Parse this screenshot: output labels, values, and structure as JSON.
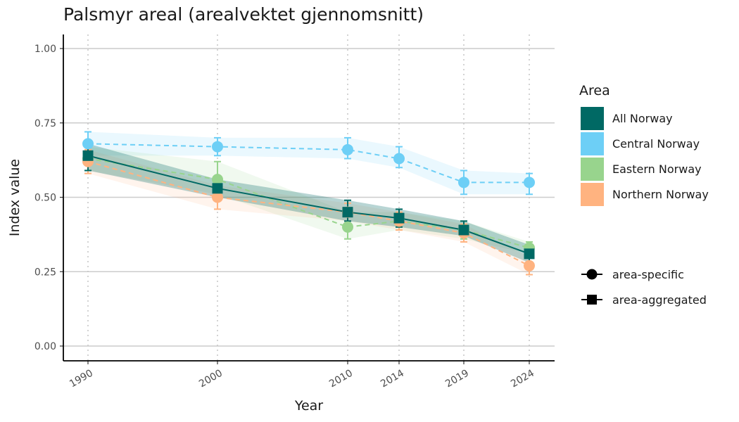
{
  "chart_data": {
    "type": "line",
    "title": "Palsmyr areal (arealvektet gjennomsnitt)",
    "xlabel": "Year",
    "ylabel": "Index value",
    "x": [
      1990,
      2000,
      2010,
      2014,
      2019,
      2024
    ],
    "x_tick_labels": [
      "1990",
      "2000",
      "2010",
      "2014",
      "2019",
      "2024"
    ],
    "ylim": [
      0,
      1
    ],
    "y_ticks": [
      0.0,
      0.25,
      0.5,
      0.75,
      1.0
    ],
    "y_tick_labels": [
      "0.00",
      "0.25",
      "0.50",
      "0.75",
      "1.00"
    ],
    "grid": "horizontal major lines; dotted vertical lines at data years",
    "legend": {
      "title": "Area",
      "position": "right",
      "shape_entries": [
        {
          "label": "area-specific",
          "shape": "circle"
        },
        {
          "label": "area-aggregated",
          "shape": "square"
        }
      ]
    },
    "series": [
      {
        "name": "Central Norway",
        "color": "#6DCFF6",
        "line": "dashed",
        "shape": "circle",
        "values": [
          0.68,
          0.67,
          0.66,
          0.63,
          0.55,
          0.55
        ],
        "lower": [
          0.64,
          0.64,
          0.63,
          0.6,
          0.51,
          0.51
        ],
        "upper": [
          0.72,
          0.7,
          0.7,
          0.67,
          0.59,
          0.58
        ]
      },
      {
        "name": "Eastern Norway",
        "color": "#98D48D",
        "line": "dashed",
        "shape": "circle",
        "values": [
          0.63,
          0.56,
          0.4,
          0.42,
          0.39,
          0.33
        ],
        "lower": [
          0.59,
          0.51,
          0.36,
          0.39,
          0.36,
          0.31
        ],
        "upper": [
          0.67,
          0.62,
          0.45,
          0.45,
          0.42,
          0.35
        ]
      },
      {
        "name": "Northern Norway",
        "color": "#FFB380",
        "line": "dashed",
        "shape": "circle",
        "values": [
          0.62,
          0.5,
          0.45,
          0.42,
          0.38,
          0.27
        ],
        "lower": [
          0.58,
          0.46,
          0.42,
          0.39,
          0.35,
          0.24
        ],
        "upper": [
          0.66,
          0.54,
          0.48,
          0.45,
          0.41,
          0.3
        ]
      },
      {
        "name": "All Norway",
        "color": "#006964",
        "line": "solid",
        "shape": "square",
        "values": [
          0.64,
          0.53,
          0.45,
          0.43,
          0.39,
          0.31
        ],
        "lower": [
          0.59,
          0.5,
          0.42,
          0.4,
          0.37,
          0.28
        ],
        "upper": [
          0.68,
          0.56,
          0.49,
          0.46,
          0.42,
          0.34
        ]
      }
    ]
  }
}
